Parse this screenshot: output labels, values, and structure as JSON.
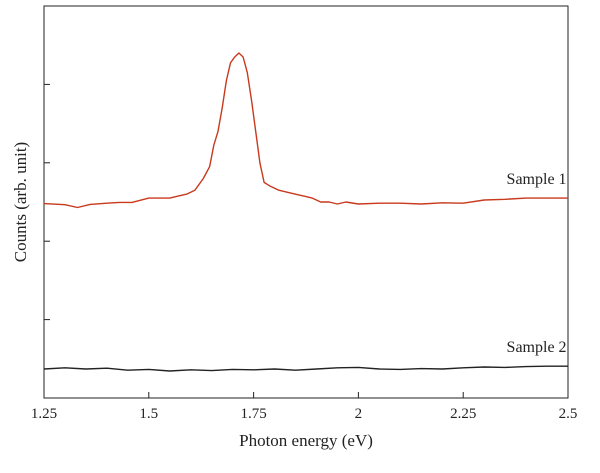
{
  "chart_data": {
    "type": "line",
    "title": "",
    "xlabel": "Photon energy (eV)",
    "ylabel": "Counts (arb. unit)",
    "xlim": [
      1.25,
      2.5
    ],
    "ylim": [
      0,
      1
    ],
    "x_ticks": [
      "1.25",
      "1.5",
      "1.75",
      "2",
      "2.25",
      "2.5"
    ],
    "x_tick_values": [
      1.25,
      1.5,
      1.75,
      2.0,
      2.25,
      2.5
    ],
    "y_tick_values": [
      0.2,
      0.4,
      0.6,
      0.8,
      1.0
    ],
    "grid": false,
    "legend": "none",
    "series": [
      {
        "name": "Sample 1",
        "color": "#c8391d",
        "x": [
          1.25,
          1.3,
          1.33,
          1.36,
          1.4,
          1.43,
          1.46,
          1.5,
          1.53,
          1.55,
          1.57,
          1.59,
          1.61,
          1.63,
          1.645,
          1.655,
          1.665,
          1.675,
          1.685,
          1.695,
          1.705,
          1.715,
          1.725,
          1.735,
          1.745,
          1.755,
          1.765,
          1.775,
          1.79,
          1.81,
          1.83,
          1.85,
          1.87,
          1.89,
          1.91,
          1.93,
          1.95,
          1.97,
          2.0,
          2.05,
          2.1,
          2.15,
          2.2,
          2.25,
          2.3,
          2.35,
          2.4,
          2.45,
          2.5
        ],
        "y": [
          0.496,
          0.493,
          0.486,
          0.494,
          0.497,
          0.499,
          0.499,
          0.51,
          0.51,
          0.51,
          0.515,
          0.52,
          0.53,
          0.56,
          0.59,
          0.645,
          0.68,
          0.74,
          0.81,
          0.855,
          0.87,
          0.88,
          0.87,
          0.83,
          0.76,
          0.68,
          0.6,
          0.55,
          0.54,
          0.53,
          0.525,
          0.52,
          0.515,
          0.51,
          0.5,
          0.5,
          0.495,
          0.5,
          0.495,
          0.497,
          0.497,
          0.495,
          0.498,
          0.497,
          0.505,
          0.507,
          0.51,
          0.51,
          0.51
        ]
      },
      {
        "name": "Sample 2",
        "color": "#222222",
        "x": [
          1.25,
          1.3,
          1.35,
          1.4,
          1.45,
          1.5,
          1.55,
          1.6,
          1.65,
          1.7,
          1.75,
          1.8,
          1.85,
          1.9,
          1.95,
          2.0,
          2.05,
          2.1,
          2.15,
          2.2,
          2.25,
          2.3,
          2.35,
          2.4,
          2.45,
          2.5
        ],
        "y": [
          0.074,
          0.077,
          0.074,
          0.076,
          0.071,
          0.073,
          0.069,
          0.072,
          0.07,
          0.073,
          0.072,
          0.074,
          0.071,
          0.074,
          0.077,
          0.078,
          0.074,
          0.073,
          0.075,
          0.074,
          0.077,
          0.079,
          0.078,
          0.08,
          0.081,
          0.081
        ]
      }
    ]
  }
}
